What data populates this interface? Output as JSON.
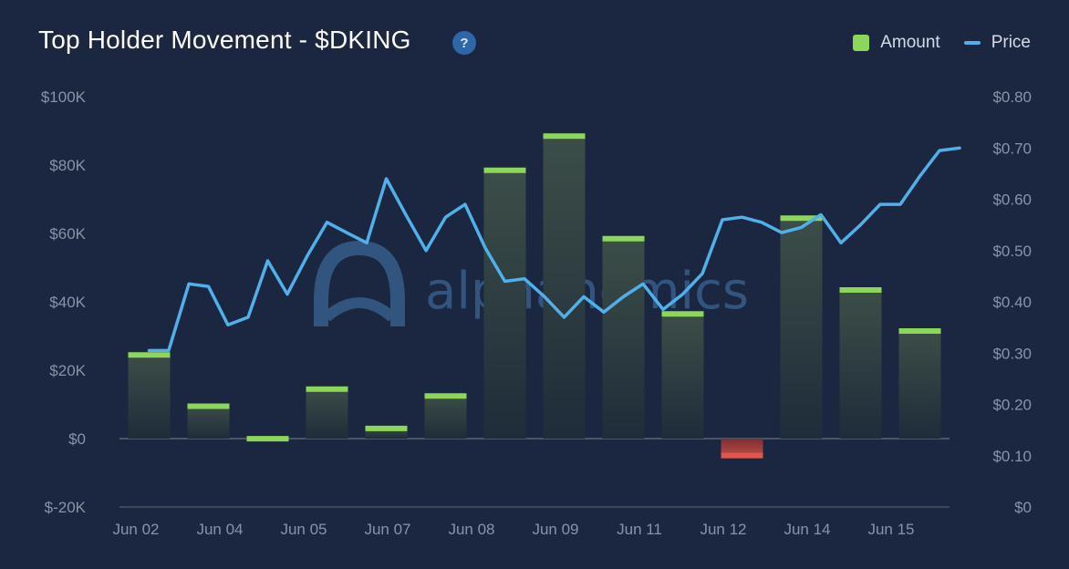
{
  "header": {
    "title": "Top Holder Movement - $DKING",
    "help_icon": "question-icon",
    "help_glyph": "?"
  },
  "legend": {
    "amount_label": "Amount",
    "price_label": "Price"
  },
  "watermark": {
    "text": "alphanomics"
  },
  "colors": {
    "background": "#1b2740",
    "positive_bar_cap": "#8cd65a",
    "negative_bar_cap": "#e0564e",
    "price_line": "#4fb0ea",
    "watermark": "#32557f"
  },
  "chart_data": {
    "type": "bar+line",
    "title": "Top Holder Movement - $DKING",
    "x_tick_labels": [
      "Jun 02",
      "Jun 04",
      "Jun 05",
      "Jun 07",
      "Jun 08",
      "Jun 09",
      "Jun 11",
      "Jun 12",
      "Jun 14",
      "Jun 15"
    ],
    "left_axis": {
      "ticks": [
        "$100K",
        "$80K",
        "$60K",
        "$40K",
        "$20K",
        "$0",
        "$-20K"
      ],
      "range": [
        -20000,
        100000
      ]
    },
    "right_axis": {
      "ticks": [
        "$0.80",
        "$0.70",
        "$0.60",
        "$0.50",
        "$0.40",
        "$0.30",
        "$0.20",
        "$0.10",
        "$0"
      ],
      "range": [
        0,
        0.8
      ]
    },
    "series": [
      {
        "name": "Amount",
        "kind": "bar",
        "axis": "left",
        "x_index": [
          0,
          1,
          2,
          3,
          4,
          5,
          6,
          7,
          8,
          9,
          10,
          11,
          12,
          13
        ],
        "values": [
          25000,
          10000,
          500,
          15000,
          3500,
          13000,
          79000,
          89000,
          59000,
          37000,
          -5500,
          65000,
          44000,
          32000
        ]
      },
      {
        "name": "Price",
        "kind": "line",
        "axis": "right",
        "x_index": [
          0,
          0.33,
          0.67,
          1,
          1.33,
          1.67,
          2,
          2.33,
          2.67,
          3,
          3.33,
          3.67,
          4,
          4.33,
          4.67,
          5,
          5.33,
          5.67,
          6,
          6.33,
          6.67,
          7,
          7.33,
          7.67,
          8,
          8.33,
          8.67,
          9,
          9.33,
          9.67,
          10,
          10.33,
          10.67,
          11,
          11.33,
          11.67,
          12,
          12.33,
          12.67,
          13,
          13.33,
          13.67
        ],
        "values": [
          0.305,
          0.305,
          0.435,
          0.43,
          0.355,
          0.37,
          0.48,
          0.415,
          0.49,
          0.555,
          0.535,
          0.515,
          0.64,
          0.57,
          0.5,
          0.565,
          0.59,
          0.505,
          0.44,
          0.445,
          0.41,
          0.37,
          0.41,
          0.38,
          0.41,
          0.435,
          0.385,
          0.415,
          0.455,
          0.56,
          0.565,
          0.555,
          0.535,
          0.545,
          0.57,
          0.515,
          0.55,
          0.59,
          0.59,
          0.645,
          0.695,
          0.7
        ]
      }
    ],
    "grid": false,
    "legend_position": "top-right"
  }
}
